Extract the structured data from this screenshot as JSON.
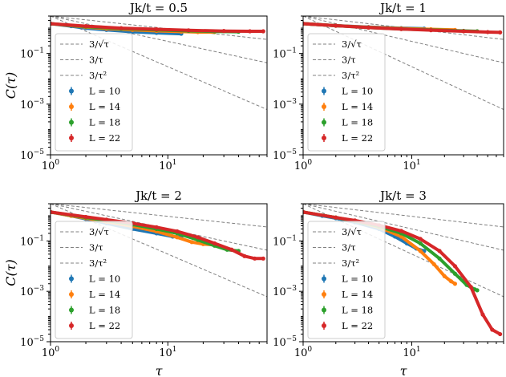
{
  "figure": {
    "xlabel": "τ",
    "ylabel": "C(τ)",
    "legend": {
      "ref_labels": [
        "3/√τ",
        "3/τ",
        "3/τ²"
      ],
      "series_labels": [
        "L = 10",
        "L = 14",
        "L = 18",
        "L = 22"
      ]
    },
    "tick_labels": {
      "x_base": "10",
      "x_exponents": [
        "0",
        "1"
      ],
      "y_base": "10",
      "y_exponents": [
        "−5",
        "−3",
        "−1"
      ]
    }
  },
  "colors": {
    "L10": "#1f77b4",
    "L14": "#ff7f0e",
    "L18": "#2ca02c",
    "L22": "#d62728",
    "reference": "#808080"
  },
  "chart_data": [
    {
      "type": "scatter",
      "title": "Jk/t = 0.5",
      "xlabel": "τ",
      "ylabel": "C(τ)",
      "xscale": "log",
      "yscale": "log",
      "xlim": [
        1,
        70
      ],
      "ylim": [
        1e-05,
        3
      ],
      "reference_lines": [
        {
          "label": "3/√τ",
          "coef": 3,
          "power": 0.5
        },
        {
          "label": "3/τ",
          "coef": 3,
          "power": 1
        },
        {
          "label": "3/τ²",
          "coef": 3,
          "power": 2
        }
      ],
      "series": [
        {
          "name": "L = 10",
          "color_key": "L10",
          "x": [
            1,
            1.5,
            2,
            3,
            5,
            8,
            13
          ],
          "y": [
            1.5,
            1.2,
            1.0,
            0.85,
            0.72,
            0.65,
            0.6
          ]
        },
        {
          "name": "L = 14",
          "color_key": "L14",
          "x": [
            1,
            2,
            3,
            5,
            8,
            13,
            18,
            25
          ],
          "y": [
            1.5,
            1.1,
            0.95,
            0.85,
            0.78,
            0.73,
            0.7,
            0.7
          ]
        },
        {
          "name": "L = 18",
          "color_key": "L18",
          "x": [
            1,
            2,
            4,
            8,
            15,
            25,
            40
          ],
          "y": [
            1.5,
            1.15,
            0.95,
            0.85,
            0.78,
            0.74,
            0.72
          ]
        },
        {
          "name": "L = 22",
          "color_key": "L22",
          "x": [
            1,
            2,
            4,
            8,
            15,
            30,
            50,
            65
          ],
          "y": [
            1.5,
            1.2,
            1.0,
            0.9,
            0.82,
            0.77,
            0.75,
            0.75
          ]
        }
      ]
    },
    {
      "type": "scatter",
      "title": "Jk/t = 1",
      "xlabel": "τ",
      "ylabel": "C(τ)",
      "xscale": "log",
      "yscale": "log",
      "xlim": [
        1,
        70
      ],
      "ylim": [
        1e-05,
        3
      ],
      "reference_lines": [
        {
          "label": "3/√τ",
          "coef": 3,
          "power": 0.5
        },
        {
          "label": "3/τ",
          "coef": 3,
          "power": 1
        },
        {
          "label": "3/τ²",
          "coef": 3,
          "power": 2
        }
      ],
      "series": [
        {
          "name": "L = 10",
          "color_key": "L10",
          "x": [
            1,
            2,
            4,
            8,
            13
          ],
          "y": [
            1.5,
            1.25,
            1.1,
            1.0,
            0.95
          ]
        },
        {
          "name": "L = 14",
          "color_key": "L14",
          "x": [
            1,
            2,
            4,
            8,
            15,
            25
          ],
          "y": [
            1.5,
            1.25,
            1.08,
            0.97,
            0.9,
            0.85
          ]
        },
        {
          "name": "L = 18",
          "color_key": "L18",
          "x": [
            1,
            2,
            4,
            8,
            15,
            30,
            40
          ],
          "y": [
            1.5,
            1.25,
            1.05,
            0.93,
            0.85,
            0.78,
            0.75
          ]
        },
        {
          "name": "L = 22",
          "color_key": "L22",
          "x": [
            1,
            2,
            4,
            8,
            15,
            30,
            50,
            65
          ],
          "y": [
            1.5,
            1.25,
            1.05,
            0.92,
            0.83,
            0.75,
            0.7,
            0.68
          ]
        }
      ]
    },
    {
      "type": "scatter",
      "title": "Jk/t = 2",
      "xlabel": "τ",
      "ylabel": "C(τ)",
      "xscale": "log",
      "yscale": "log",
      "xlim": [
        1,
        70
      ],
      "ylim": [
        1e-05,
        3
      ],
      "reference_lines": [
        {
          "label": "3/√τ",
          "coef": 3,
          "power": 0.5
        },
        {
          "label": "3/τ",
          "coef": 3,
          "power": 1
        },
        {
          "label": "3/τ²",
          "coef": 3,
          "power": 2
        }
      ],
      "series": [
        {
          "name": "L = 10",
          "color_key": "L10",
          "x": [
            1,
            1.5,
            2,
            3,
            5,
            8,
            11,
            13
          ],
          "y": [
            1.4,
            1.0,
            0.75,
            0.5,
            0.3,
            0.2,
            0.15,
            0.14
          ]
        },
        {
          "name": "L = 14",
          "color_key": "L14",
          "x": [
            1,
            1.5,
            2,
            3,
            5,
            8,
            12,
            16,
            20,
            25
          ],
          "y": [
            1.4,
            1.0,
            0.8,
            0.58,
            0.38,
            0.24,
            0.14,
            0.09,
            0.075,
            0.07
          ]
        },
        {
          "name": "L = 18",
          "color_key": "L18",
          "x": [
            1,
            2,
            3,
            5,
            8,
            12,
            18,
            25,
            32,
            40
          ],
          "y": [
            1.4,
            0.85,
            0.65,
            0.45,
            0.3,
            0.2,
            0.11,
            0.065,
            0.045,
            0.04
          ]
        },
        {
          "name": "L = 22",
          "color_key": "L22",
          "x": [
            1,
            2,
            3,
            5,
            8,
            12,
            18,
            25,
            35,
            45,
            55,
            65
          ],
          "y": [
            1.4,
            0.9,
            0.7,
            0.5,
            0.35,
            0.24,
            0.14,
            0.08,
            0.045,
            0.025,
            0.02,
            0.02
          ]
        }
      ]
    },
    {
      "type": "scatter",
      "title": "Jk/t = 3",
      "xlabel": "τ",
      "ylabel": "C(τ)",
      "xscale": "log",
      "yscale": "log",
      "xlim": [
        1,
        70
      ],
      "ylim": [
        1e-05,
        3
      ],
      "reference_lines": [
        {
          "label": "3/√τ",
          "coef": 3,
          "power": 0.5
        },
        {
          "label": "3/τ",
          "coef": 3,
          "power": 1
        },
        {
          "label": "3/τ²",
          "coef": 3,
          "power": 2
        }
      ],
      "series": [
        {
          "name": "L = 10",
          "color_key": "L10",
          "x": [
            1,
            1.5,
            2,
            3,
            5,
            7,
            9,
            11,
            13
          ],
          "y": [
            1.4,
            1.0,
            0.8,
            0.55,
            0.3,
            0.15,
            0.08,
            0.05,
            0.04
          ]
        },
        {
          "name": "L = 14",
          "color_key": "L14",
          "x": [
            1,
            2,
            3,
            5,
            8,
            12,
            16,
            20,
            23,
            25
          ],
          "y": [
            1.4,
            0.85,
            0.62,
            0.35,
            0.15,
            0.04,
            0.012,
            0.004,
            0.0025,
            0.002
          ]
        },
        {
          "name": "L = 18",
          "color_key": "L18",
          "x": [
            1,
            2,
            3,
            5,
            8,
            12,
            18,
            25,
            32,
            38,
            40
          ],
          "y": [
            1.4,
            0.85,
            0.62,
            0.38,
            0.2,
            0.08,
            0.02,
            0.005,
            0.0018,
            0.0012,
            0.0011
          ]
        },
        {
          "name": "L = 22",
          "color_key": "L22",
          "x": [
            1,
            2,
            3,
            5,
            8,
            12,
            18,
            25,
            35,
            45,
            55,
            65
          ],
          "y": [
            1.4,
            0.85,
            0.65,
            0.42,
            0.25,
            0.12,
            0.04,
            0.01,
            0.0015,
            0.00012,
            3e-05,
            2e-05
          ]
        }
      ]
    }
  ]
}
